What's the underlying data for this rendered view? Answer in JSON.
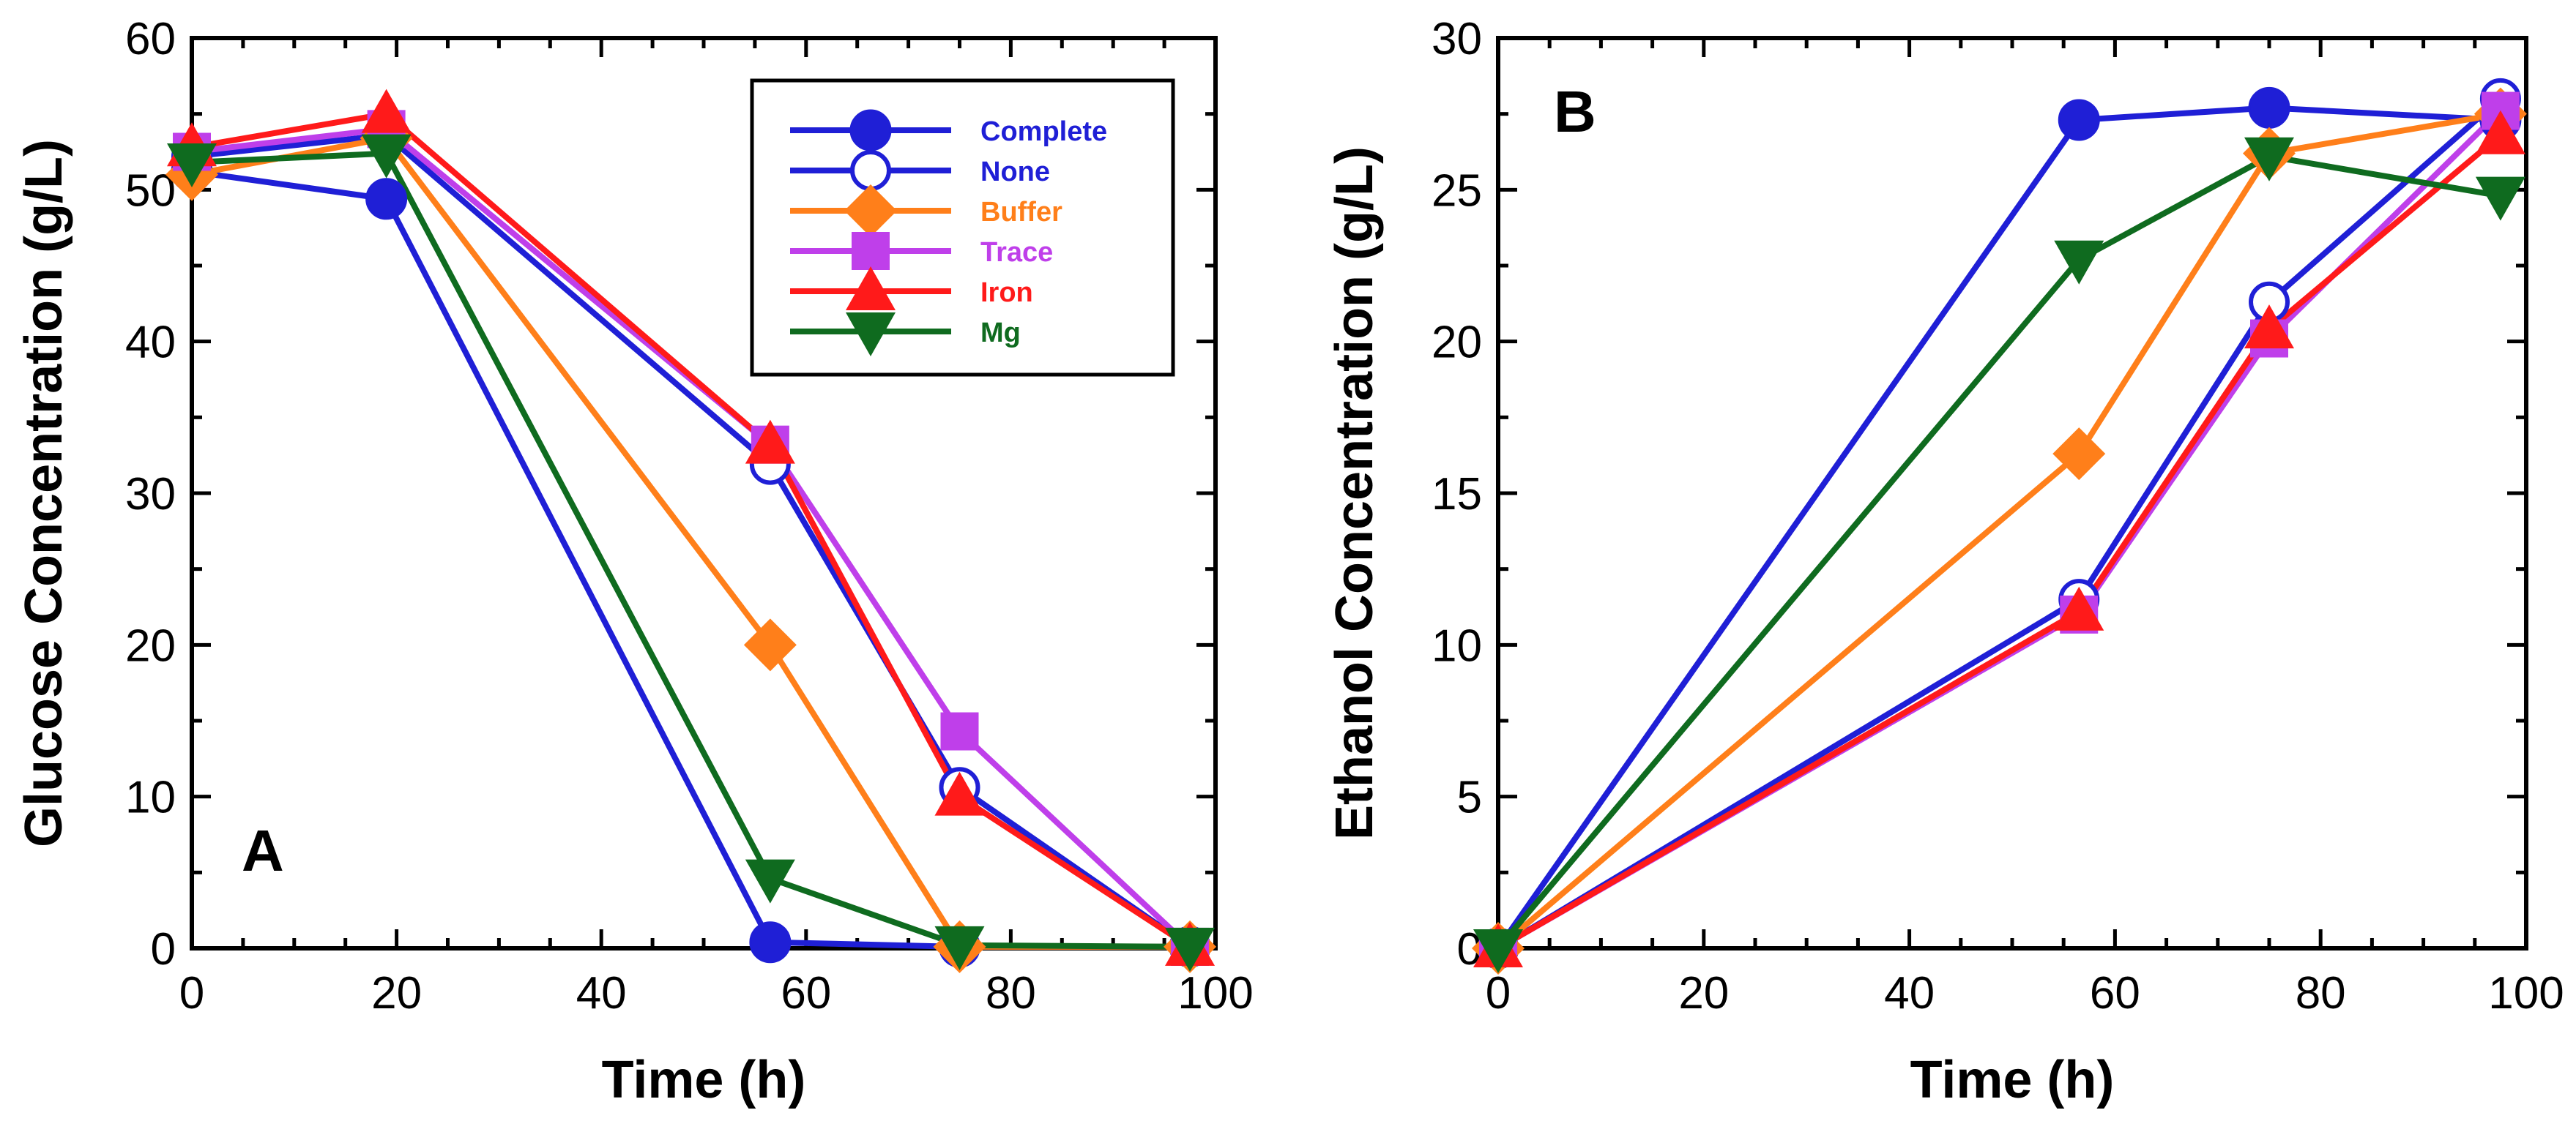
{
  "chart_data": [
    {
      "type": "line",
      "panel_label": "A",
      "title": "",
      "xlabel": "Time (h)",
      "ylabel": "Glucose Concentration (g/L)",
      "xlim": [
        0,
        100
      ],
      "ylim": [
        0,
        60
      ],
      "xticks": [
        0,
        20,
        40,
        60,
        80,
        100
      ],
      "yticks": [
        0,
        10,
        20,
        30,
        40,
        50,
        60
      ],
      "grid": false,
      "legend": {
        "placement": "top-right"
      },
      "series": [
        {
          "name": "Complete",
          "color": "#1f1fd6",
          "marker": "circle-filled",
          "x": [
            0,
            19,
            56.5,
            75,
            97.5
          ],
          "y": [
            51.2,
            49.4,
            0.4,
            0.1,
            0.1
          ]
        },
        {
          "name": "None",
          "color": "#1f1fd6",
          "marker": "circle-open",
          "x": [
            0,
            19,
            56.5,
            75,
            97.5
          ],
          "y": [
            52.2,
            53.6,
            31.9,
            10.6,
            0.1
          ]
        },
        {
          "name": "Buffer",
          "color": "#ff7f1a",
          "marker": "diamond",
          "x": [
            0,
            19,
            56.5,
            75,
            97.5
          ],
          "y": [
            51.0,
            53.4,
            20.0,
            0.1,
            0.1
          ]
        },
        {
          "name": "Trace",
          "color": "#bf3fea",
          "marker": "square",
          "x": [
            0,
            19,
            56.5,
            75,
            97.5
          ],
          "y": [
            52.5,
            54.0,
            33.2,
            14.3,
            0.1
          ]
        },
        {
          "name": "Iron",
          "color": "#ff1a1a",
          "marker": "triangle-up",
          "x": [
            0,
            19,
            56.5,
            75,
            97.5
          ],
          "y": [
            52.8,
            55.0,
            33.2,
            10.0,
            0.1
          ]
        },
        {
          "name": "Mg",
          "color": "#0f6b1f",
          "marker": "triangle-down",
          "x": [
            0,
            19,
            56.5,
            75,
            97.5
          ],
          "y": [
            51.8,
            52.4,
            4.6,
            0.2,
            0.1
          ]
        }
      ]
    },
    {
      "type": "line",
      "panel_label": "B",
      "title": "",
      "xlabel": "Time (h)",
      "ylabel": "Ethanol Concentration (g/L)",
      "xlim": [
        0,
        100
      ],
      "ylim": [
        0,
        30
      ],
      "xticks": [
        0,
        20,
        40,
        60,
        80,
        100
      ],
      "yticks": [
        0,
        5,
        10,
        15,
        20,
        25,
        30
      ],
      "grid": false,
      "series": [
        {
          "name": "Complete",
          "color": "#1f1fd6",
          "marker": "circle-filled",
          "x": [
            0,
            56.5,
            75,
            97.5
          ],
          "y": [
            0,
            27.3,
            27.7,
            27.3
          ]
        },
        {
          "name": "None",
          "color": "#1f1fd6",
          "marker": "circle-open",
          "x": [
            0,
            56.5,
            75,
            97.5
          ],
          "y": [
            0,
            11.5,
            21.3,
            28.0
          ]
        },
        {
          "name": "Buffer",
          "color": "#ff7f1a",
          "marker": "diamond",
          "x": [
            0,
            56.5,
            75,
            97.5
          ],
          "y": [
            0,
            16.3,
            26.2,
            27.5
          ]
        },
        {
          "name": "Trace",
          "color": "#bf3fea",
          "marker": "square",
          "x": [
            0,
            56.5,
            75,
            97.5
          ],
          "y": [
            0,
            11.0,
            20.1,
            27.6
          ]
        },
        {
          "name": "Iron",
          "color": "#ff1a1a",
          "marker": "triangle-up",
          "x": [
            0,
            56.5,
            75,
            97.5
          ],
          "y": [
            0,
            11.1,
            20.4,
            26.8
          ]
        },
        {
          "name": "Mg",
          "color": "#0f6b1f",
          "marker": "triangle-down",
          "x": [
            0,
            56.5,
            75,
            97.5
          ],
          "y": [
            0,
            22.7,
            26.1,
            24.8
          ]
        }
      ]
    }
  ]
}
